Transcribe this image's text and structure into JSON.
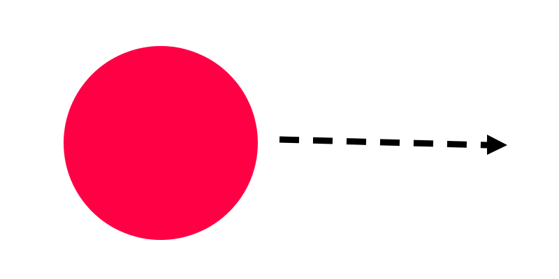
{
  "background_color": "#ffffff",
  "circle": {
    "shape": "circle",
    "fill_color": "#ff0044"
  },
  "arrow": {
    "line_style": "dashed",
    "direction": "right",
    "color": "#000000"
  }
}
